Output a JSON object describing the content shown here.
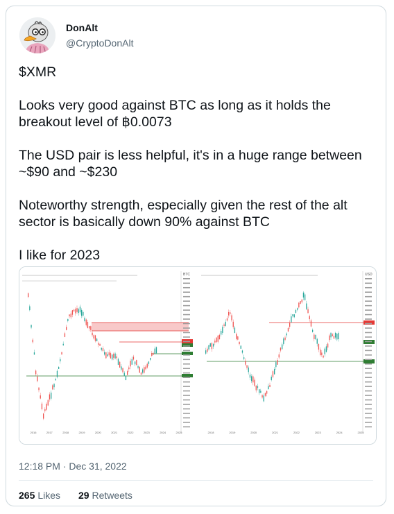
{
  "author": {
    "name": "DonAlt",
    "handle": "@CryptoDonAlt",
    "avatar_icon": "duck-avatar-icon"
  },
  "tweet": {
    "paragraphs": [
      "$XMR",
      "Looks very good against BTC as long as it holds the breakout level of ฿0.0073",
      "The USD pair is less helpful, it's in a huge range between ~$90 and ~$230",
      "Noteworthy strength, especially given the rest of the alt sector is basically down 90% against BTC",
      "I like for 2023"
    ],
    "timestamp": "12:18 PM · Dec 31, 2022",
    "likes_count": "265",
    "likes_label": "Likes",
    "retweets_count": "29",
    "retweets_label": "Retweets"
  },
  "media": {
    "left_chart": {
      "axis_unit": "BTC",
      "x_labels": [
        "2016",
        "2017",
        "2018",
        "2019",
        "2020",
        "2021",
        "2022",
        "2023",
        "2024",
        "2025"
      ]
    },
    "right_chart": {
      "axis_unit": "USD",
      "x_labels": [
        "2018",
        "2019",
        "2020",
        "2021",
        "2022",
        "2023",
        "2024",
        "2025"
      ]
    },
    "colors": {
      "up": "#26a69a",
      "down": "#ef5350",
      "line_red": "#e53935",
      "line_green": "#2e7d32",
      "zone": "#f8c9c9"
    }
  }
}
